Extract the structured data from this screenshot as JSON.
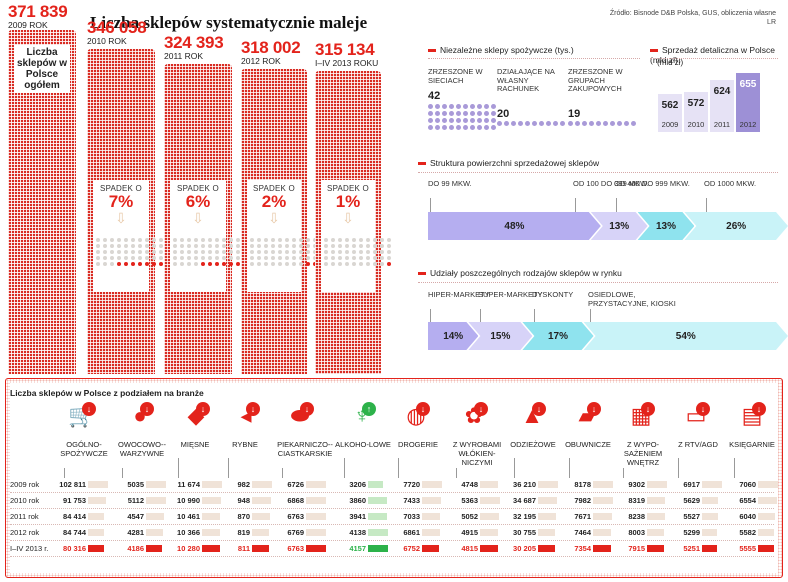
{
  "header": {
    "title": "Liczba sklepów systematycznie maleje",
    "source": "Źródło: Bisnode D&B Polska, GUS, obliczenia własne",
    "author": "LR"
  },
  "chart_data": [
    {
      "type": "bar",
      "label": "Liczba sklepów w Polsce ogółem",
      "categories": [
        "2009 ROK",
        "2010 ROK",
        "2011 ROK",
        "2012 ROK",
        "I–IV 2013 ROKU"
      ],
      "values": [
        371839,
        346058,
        324393,
        318002,
        315134
      ],
      "value_labels": [
        "371 839",
        "346 058",
        "324 393",
        "318 002",
        "315 134"
      ],
      "drops": [
        {
          "label": "SPADEK O",
          "value": "7%",
          "pct": 7
        },
        {
          "label": "SPADEK O",
          "value": "6%",
          "pct": 6
        },
        {
          "label": "SPADEK O",
          "value": "2%",
          "pct": 2
        },
        {
          "label": "SPADEK O",
          "value": "1%",
          "pct": 1
        }
      ]
    },
    {
      "type": "pictogram",
      "title": "Niezależne sklepy spożywcze (tys.)",
      "items": [
        {
          "label": "ZRZESZONE W SIECIACH",
          "value": 42
        },
        {
          "label": "DZIAŁAJĄCE NA WŁASNY RACHUNEK",
          "value": 20
        },
        {
          "label": "ZRZESZONE W GRUPACH ZAKUPOWYCH",
          "value": 19
        }
      ]
    },
    {
      "type": "bar",
      "title": "Sprzedaż detaliczna w Polsce (mld zł)",
      "categories": [
        "2009",
        "2010",
        "2011",
        "2012"
      ],
      "values": [
        562,
        572,
        624,
        655
      ],
      "ylim": [
        0,
        700
      ]
    },
    {
      "type": "bar",
      "title": "Struktura powierzchni sprzedażowej sklepów",
      "categories": [
        "DO 99 MKW.",
        "OD 100 DO 399 MKW.",
        "OD 400 DO 999 MKW.",
        "OD 1000 MKW."
      ],
      "values": [
        48,
        13,
        13,
        26
      ],
      "value_labels": [
        "48%",
        "13%",
        "13%",
        "26%"
      ],
      "colors": [
        "#b5aef0",
        "#d7d3f8",
        "#8fe3ee",
        "#c9f3f8"
      ]
    },
    {
      "type": "bar",
      "title": "Udziały poszczególnych rodzajów sklepów w rynku",
      "categories": [
        "HIPER-MARKETY",
        "SUPER-MARKETY",
        "DYSKONTY",
        "OSIEDLOWE, PRZYSTACYJNE, KIOSKI"
      ],
      "values": [
        14,
        15,
        17,
        54
      ],
      "value_labels": [
        "14%",
        "15%",
        "17%",
        "54%"
      ],
      "colors": [
        "#b5aef0",
        "#d7d3f8",
        "#8fe3ee",
        "#c9f3f8"
      ]
    },
    {
      "type": "table",
      "title": "Liczba sklepów w Polsce z podziałem na branże",
      "rows": [
        "2009 rok",
        "2010 rok",
        "2011 rok",
        "2012 rok",
        "I–IV 2013 r."
      ],
      "columns": [
        {
          "name": "OGÓLNO-SPOŻYWCZE",
          "icon": "cart-icon",
          "values": [
            "102 811",
            "91 753",
            "84 414",
            "84 744",
            "80 316"
          ],
          "nums": [
            102811,
            91753,
            84414,
            84744,
            80316
          ],
          "trend": "down"
        },
        {
          "name": "OWOCOWO--WARZYWNE",
          "icon": "apple-icon",
          "values": [
            "5035",
            "5112",
            "4547",
            "4281",
            "4186"
          ],
          "nums": [
            5035,
            5112,
            4547,
            4281,
            4186
          ],
          "trend": "down"
        },
        {
          "name": "MIĘSNE",
          "icon": "meat-icon",
          "values": [
            "11 674",
            "10 990",
            "10 461",
            "10 366",
            "10 280"
          ],
          "nums": [
            11674,
            10990,
            10461,
            10366,
            10280
          ],
          "trend": "down"
        },
        {
          "name": "RYBNE",
          "icon": "fish-icon",
          "values": [
            "982",
            "948",
            "870",
            "819",
            "811"
          ],
          "nums": [
            982,
            948,
            870,
            819,
            811
          ],
          "trend": "down"
        },
        {
          "name": "PIEKARNICZO--CIASTKARSKIE",
          "icon": "bread-icon",
          "values": [
            "6726",
            "6868",
            "6763",
            "6769",
            "6763"
          ],
          "nums": [
            6726,
            6868,
            6763,
            6769,
            6763
          ],
          "trend": "down"
        },
        {
          "name": "ALKOHO-LOWE",
          "icon": "wine-icon",
          "values": [
            "3206",
            "3860",
            "3941",
            "4138",
            "4157"
          ],
          "nums": [
            3206,
            3860,
            3941,
            4138,
            4157
          ],
          "trend": "up"
        },
        {
          "name": "DROGERIE",
          "icon": "bottle-icon",
          "values": [
            "7720",
            "7433",
            "7033",
            "6861",
            "6752"
          ],
          "nums": [
            7720,
            7433,
            7033,
            6861,
            6752
          ],
          "trend": "down"
        },
        {
          "name": "Z WYROBAMI WŁÓKIEN-NICZYMI",
          "icon": "yarn-icon",
          "values": [
            "4748",
            "5363",
            "5052",
            "4915",
            "4815"
          ],
          "nums": [
            4748,
            5363,
            5052,
            4915,
            4815
          ],
          "trend": "down"
        },
        {
          "name": "ODZIEŻOWE",
          "icon": "shirt-icon",
          "values": [
            "36 210",
            "34 687",
            "32 195",
            "30 755",
            "30 205"
          ],
          "nums": [
            36210,
            34687,
            32195,
            30755,
            30205
          ],
          "trend": "down"
        },
        {
          "name": "OBUWNICZE",
          "icon": "shoe-icon",
          "values": [
            "8178",
            "7982",
            "7671",
            "7464",
            "7354"
          ],
          "nums": [
            8178,
            7982,
            7671,
            7464,
            7354
          ],
          "trend": "down"
        },
        {
          "name": "Z WYPO-SAŻENIEM WNĘTRZ",
          "icon": "dresser-icon",
          "values": [
            "9302",
            "8319",
            "8238",
            "8003",
            "7915"
          ],
          "nums": [
            9302,
            8319,
            8238,
            8003,
            7915
          ],
          "trend": "down"
        },
        {
          "name": "Z RTV/AGD",
          "icon": "tv-icon",
          "values": [
            "6917",
            "5629",
            "5527",
            "5299",
            "5251"
          ],
          "nums": [
            6917,
            5629,
            5527,
            5299,
            5251
          ],
          "trend": "down"
        },
        {
          "name": "KSIĘGARNIE",
          "icon": "book-icon",
          "values": [
            "7060",
            "6554",
            "6040",
            "5582",
            "5555"
          ],
          "nums": [
            7060,
            6554,
            6040,
            5582,
            5555
          ],
          "trend": "down"
        }
      ]
    }
  ],
  "colors": {
    "accent": "#e3231b",
    "violet": "#a99ad8",
    "green": "#2db24a"
  }
}
